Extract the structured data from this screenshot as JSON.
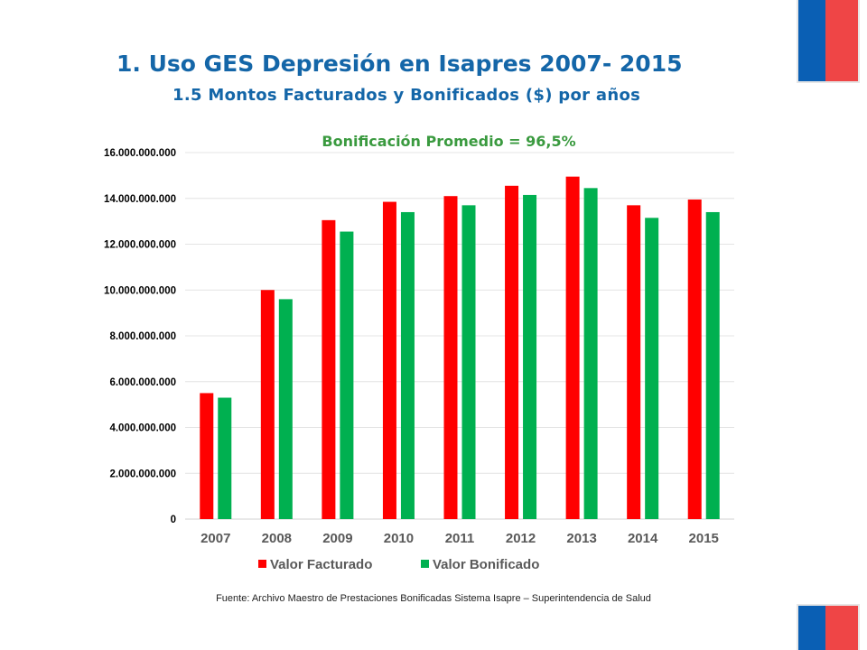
{
  "header": {
    "title": "1. Uso GES Depresión en Isapres 2007- 2015",
    "subtitle": "1.5 Montos Facturados y Bonificados ($) por años"
  },
  "chart_data": {
    "type": "bar",
    "title": "Bonificación Promedio = 96,5%",
    "categories": [
      "2007",
      "2008",
      "2009",
      "2010",
      "2011",
      "2012",
      "2013",
      "2014",
      "2015"
    ],
    "series": [
      {
        "name": "Valor Facturado",
        "color": "#ff0000",
        "values": [
          5500000000,
          10000000000,
          13050000000,
          13850000000,
          14100000000,
          14550000000,
          14950000000,
          13700000000,
          13950000000
        ]
      },
      {
        "name": "Valor Bonificado",
        "color": "#00b050",
        "values": [
          5300000000,
          9600000000,
          12550000000,
          13400000000,
          13700000000,
          14150000000,
          14450000000,
          13150000000,
          13400000000
        ]
      }
    ],
    "ylim": [
      0,
      16000000000
    ],
    "yticks": [
      "0",
      "2.000.000.000",
      "4.000.000.000",
      "6.000.000.000",
      "8.000.000.000",
      "10.000.000.000",
      "12.000.000.000",
      "14.000.000.000",
      "16.000.000.000"
    ],
    "grid": true,
    "legend_position": "bottom"
  },
  "footer": {
    "source": "Fuente: Archivo Maestro de Prestaciones Bonificadas Sistema Isapre – Superintendencia de Salud"
  }
}
